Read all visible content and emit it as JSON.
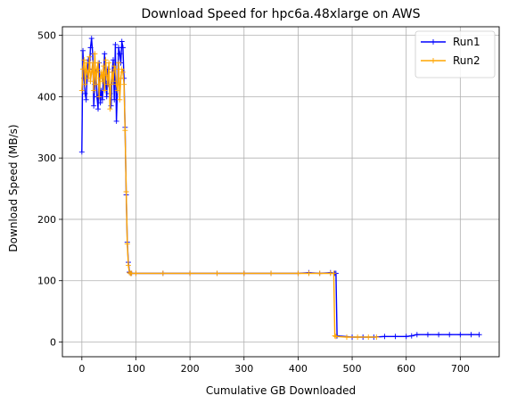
{
  "chart_data": {
    "type": "line",
    "title": "Download Speed for hpc6a.48xlarge on AWS",
    "xlabel": "Cumulative GB Downloaded",
    "ylabel": "Download Speed (MB/s)",
    "xlim": [
      -36,
      772
    ],
    "ylim": [
      -24,
      514
    ],
    "xticks": [
      0,
      100,
      200,
      300,
      400,
      500,
      600,
      700
    ],
    "yticks": [
      0,
      100,
      200,
      300,
      400,
      500
    ],
    "grid": true,
    "legend_position": "top-right",
    "series": [
      {
        "name": "Run1",
        "color": "#0000ff",
        "x": [
          0,
          2,
          4,
          6,
          8,
          10,
          12,
          14,
          16,
          18,
          20,
          22,
          24,
          26,
          28,
          30,
          32,
          34,
          36,
          38,
          40,
          42,
          44,
          46,
          48,
          50,
          52,
          54,
          56,
          58,
          60,
          62,
          64,
          66,
          68,
          70,
          72,
          74,
          76,
          78,
          80,
          82,
          84,
          86,
          88,
          90,
          92,
          100,
          150,
          200,
          250,
          300,
          350,
          400,
          420,
          440,
          460,
          468,
          470,
          472,
          500,
          520,
          540,
          560,
          580,
          600,
          610,
          620,
          640,
          660,
          680,
          700,
          720,
          735
        ],
        "y": [
          310,
          475,
          430,
          405,
          395,
          440,
          460,
          445,
          480,
          495,
          470,
          385,
          420,
          440,
          400,
          380,
          455,
          390,
          410,
          395,
          430,
          470,
          425,
          400,
          445,
          420,
          405,
          385,
          440,
          460,
          395,
          485,
          360,
          420,
          480,
          470,
          455,
          490,
          480,
          430,
          350,
          240,
          163,
          130,
          114,
          112,
          112,
          112,
          112,
          112,
          112,
          112,
          112,
          112,
          113,
          112,
          113,
          112,
          112,
          10,
          8,
          8,
          8,
          9,
          9,
          9,
          10,
          12,
          12,
          12,
          12,
          12,
          12,
          12
        ]
      },
      {
        "name": "Run2",
        "color": "#ffa500",
        "x": [
          0,
          2,
          4,
          6,
          8,
          10,
          12,
          14,
          16,
          18,
          20,
          22,
          24,
          26,
          28,
          30,
          32,
          34,
          36,
          38,
          40,
          42,
          44,
          46,
          48,
          50,
          52,
          54,
          56,
          58,
          60,
          62,
          64,
          66,
          68,
          70,
          72,
          74,
          76,
          78,
          80,
          82,
          84,
          86,
          88,
          90,
          92,
          100,
          150,
          200,
          250,
          300,
          350,
          400,
          420,
          440,
          460,
          466,
          468,
          470,
          490,
          510,
          530,
          545
        ],
        "y": [
          410,
          445,
          460,
          420,
          455,
          440,
          430,
          465,
          425,
          440,
          455,
          410,
          470,
          420,
          445,
          455,
          400,
          430,
          440,
          425,
          450,
          410,
          460,
          435,
          420,
          455,
          380,
          420,
          440,
          425,
          450,
          445,
          420,
          410,
          455,
          395,
          430,
          445,
          440,
          420,
          345,
          245,
          160,
          125,
          113,
          112,
          112,
          112,
          112,
          112,
          112,
          112,
          112,
          112,
          112,
          112,
          112,
          112,
          10,
          9,
          8,
          8,
          8,
          8
        ]
      }
    ]
  }
}
